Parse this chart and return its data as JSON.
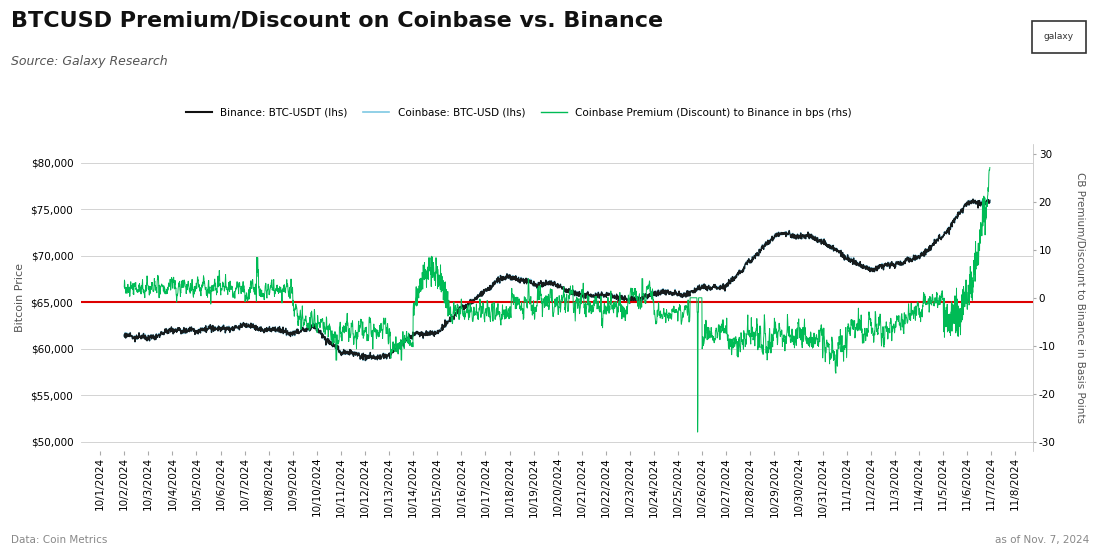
{
  "title": "BTCUSD Premium/Discount on Coinbase vs. Binance",
  "source": "Source: Galaxy Research",
  "data_note": "Data: Coin Metrics",
  "as_of": "as of Nov. 7, 2024",
  "ylabel_left": "Bitcoin Price",
  "ylabel_right": "CB Premium/Discount to Binance in Basis Points",
  "legend": [
    {
      "label": "Binance: BTC-USDT (lhs)",
      "color": "#111111",
      "lw": 1.5
    },
    {
      "label": "Coinbase: BTC-USD (lhs)",
      "color": "#7ec8e3",
      "lw": 1.2
    },
    {
      "label": "Coinbase Premium (Discount) to Binance in bps (rhs)",
      "color": "#00bb55",
      "lw": 1.0
    }
  ],
  "ylim_left": [
    49000,
    82000
  ],
  "ylim_right": [
    -32,
    32
  ],
  "yticks_left": [
    50000,
    55000,
    60000,
    65000,
    70000,
    75000,
    80000
  ],
  "yticks_right": [
    -30,
    -20,
    -10,
    0,
    10,
    20,
    30
  ],
  "background_color": "#ffffff",
  "grid_color": "#cccccc",
  "title_fontsize": 16,
  "subtitle_fontsize": 9,
  "tick_fontsize": 7.5,
  "red_line_price": 65000,
  "red_line_bps": 0,
  "binance_color": "#111111",
  "coinbase_color": "#7ec8e3",
  "premium_color": "#00bb55",
  "red_color": "#dd0000"
}
